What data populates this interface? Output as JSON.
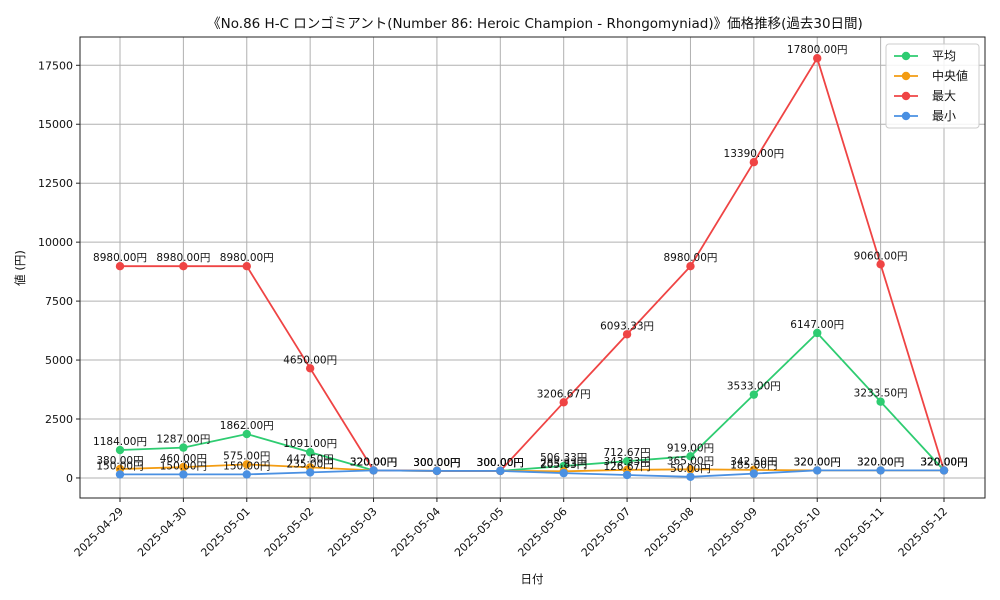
{
  "chart_data": {
    "type": "line",
    "title": "《No.86 H-C ロンゴミアント(Number 86: Heroic Champion - Rhongomyniad)》価格推移(過去30日間)",
    "xlabel": "日付",
    "ylabel": "値 (円)",
    "categories": [
      "2025-04-29",
      "2025-04-30",
      "2025-05-01",
      "2025-05-02",
      "2025-05-03",
      "2025-05-04",
      "2025-05-05",
      "2025-05-06",
      "2025-05-07",
      "2025-05-08",
      "2025-05-09",
      "2025-05-10",
      "2025-05-11",
      "2025-05-12"
    ],
    "yticks": [
      0,
      2500,
      5000,
      7500,
      10000,
      12500,
      15000,
      17500
    ],
    "ylim": [
      -850,
      18700
    ],
    "grid": true,
    "legend_position": "top-right",
    "series": [
      {
        "name": "平均",
        "color": "#2ecc71",
        "values": [
          1184,
          1287,
          1862,
          1091,
          320,
          300,
          300,
          506.33,
          712.67,
          919,
          3533,
          6147,
          3233.5,
          320
        ],
        "labels": [
          "1184.00円",
          "1287.00円",
          "1862.00円",
          "1091.00円",
          "320.00円",
          "300.00円",
          "300.00円",
          "506.33円",
          "712.67円",
          "919.00円",
          "3533.00円",
          "6147.00円",
          "3233.50円",
          "320.00円"
        ]
      },
      {
        "name": "中央値",
        "color": "#f39c12",
        "values": [
          380,
          460,
          575,
          447.5,
          320,
          300,
          300,
          283.33,
          343.33,
          365,
          342.5,
          320,
          320,
          320
        ],
        "labels": [
          "380.00円",
          "460.00円",
          "575.00円",
          "447.50円",
          "320.00円",
          "300.00円",
          "300.00円",
          "283.33円",
          "343.33円",
          "365.00円",
          "342.50円",
          "320.00円",
          "320.00円",
          "320.00円"
        ]
      },
      {
        "name": "最大",
        "color": "#ef4444",
        "values": [
          8980,
          8980,
          8980,
          4650,
          320,
          300,
          300,
          3206.67,
          6093.33,
          8980,
          13390,
          17800,
          9060,
          320
        ],
        "labels": [
          "8980.00円",
          "8980.00円",
          "8980.00円",
          "4650.00円",
          "320.00円",
          "300.00円",
          "300.00円",
          "3206.67円",
          "6093.33円",
          "8980.00円",
          "13390.00円",
          "17800.00円",
          "9060.00円",
          "320.00円"
        ]
      },
      {
        "name": "最小",
        "color": "#4a90e2",
        "values": [
          150,
          150,
          150,
          235,
          320,
          300,
          300,
          205.83,
          126.67,
          50,
          185,
          320,
          320,
          320
        ],
        "labels": [
          "150.00円",
          "150.00円",
          "150.00円",
          "235.00円",
          "320.00円",
          "300.00円",
          "300.00円",
          "205.83円",
          "126.67円",
          "50.00円",
          "185.00円",
          "320.00円",
          "320.00円",
          "320.00円"
        ]
      }
    ]
  }
}
